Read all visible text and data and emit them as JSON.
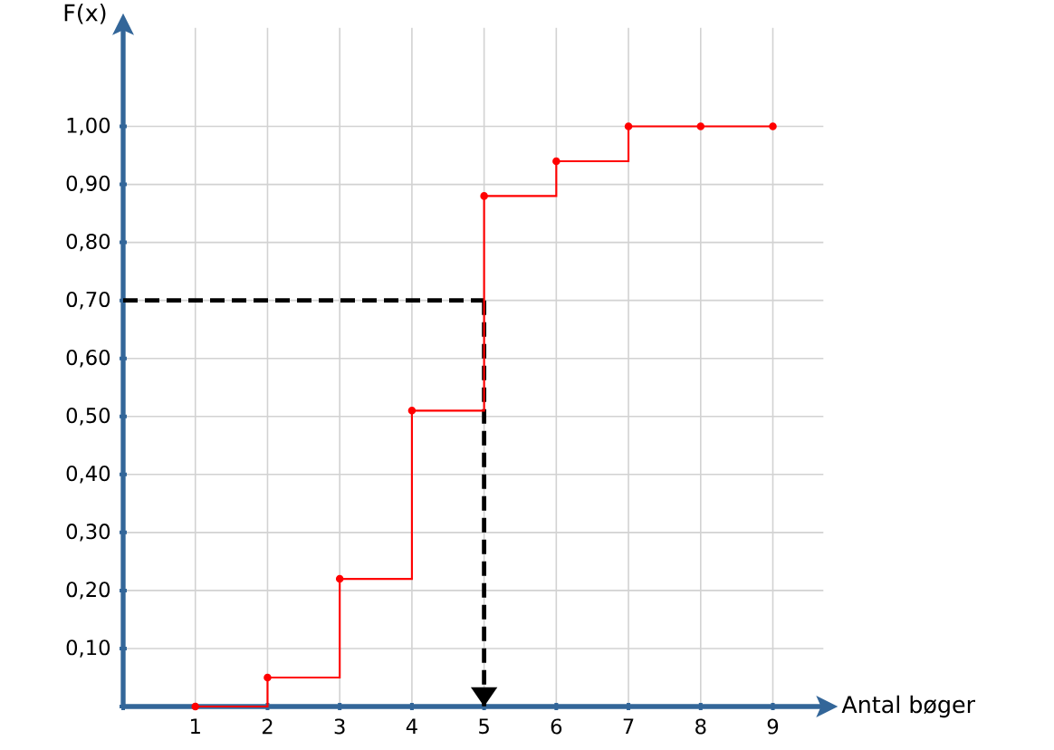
{
  "chart_data": {
    "type": "step",
    "xlabel": "Antal bøger",
    "ylabel": "F(x)",
    "x": [
      1,
      2,
      3,
      4,
      5,
      6,
      7,
      8,
      9
    ],
    "values": [
      0,
      0.05,
      0.22,
      0.51,
      0.88,
      0.94,
      1.0,
      1.0,
      1.0
    ],
    "color": "#ff0000",
    "marker": "circle",
    "grid": true,
    "xlim": [
      0,
      9.7
    ],
    "ylim": [
      0,
      1.17
    ],
    "xticks": [
      {
        "value": 0,
        "label": null
      },
      1,
      2,
      3,
      4,
      5,
      6,
      7,
      8,
      9
    ],
    "yticks": [
      {
        "value": 0,
        "label": null
      },
      {
        "value": 0.1,
        "label": "0,10"
      },
      {
        "value": 0.2,
        "label": "0,20"
      },
      {
        "value": 0.3,
        "label": "0,30"
      },
      {
        "value": 0.4,
        "label": "0,40"
      },
      {
        "value": 0.5,
        "label": "0,50"
      },
      {
        "value": 0.6,
        "label": "0,60"
      },
      {
        "value": 0.7,
        "label": "0,70"
      },
      {
        "value": 0.8,
        "label": "0,80"
      },
      {
        "value": 0.9,
        "label": "0,90"
      },
      {
        "value": 1.0,
        "label": "1,00"
      }
    ],
    "ref_lines": [
      {
        "axis": "y",
        "value": 0.7,
        "line_style": "dashed",
        "color": "#000000"
      },
      {
        "axis": "x",
        "value": 5,
        "line_style": "dashed",
        "color": "#000000"
      }
    ]
  }
}
